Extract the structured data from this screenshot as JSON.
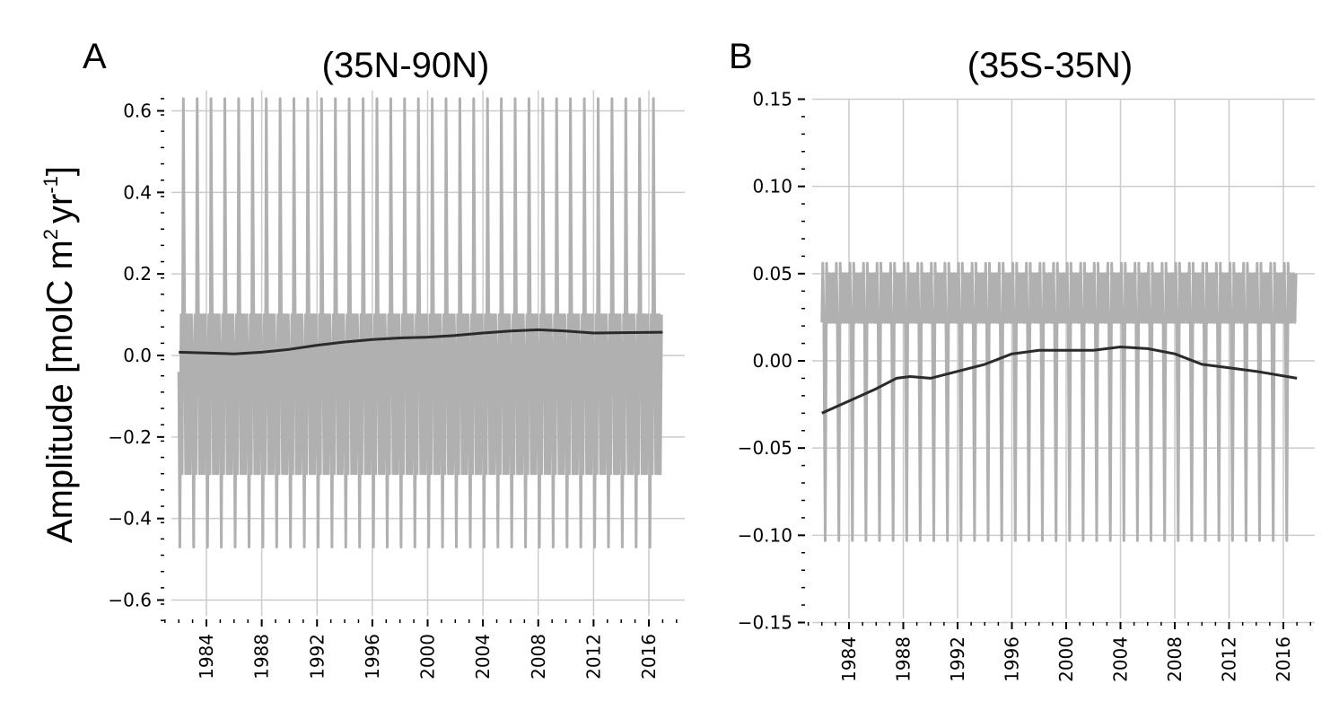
{
  "figure": {
    "ylabel_main": "Amplitude [molC m",
    "ylabel_sup2": "2",
    "ylabel_yr": "yr",
    "ylabel_sup_neg1": "-1",
    "ylabel_close": "]"
  },
  "chart_data": [
    {
      "type": "line",
      "panel_label": "A",
      "title": "(35N-90N)",
      "xlabel": "",
      "ylabel": "Amplitude [molC m2 yr-1]",
      "xlim": [
        1980.7,
        2018.6
      ],
      "ylim": [
        -0.65,
        0.65
      ],
      "x_ticks": [
        1984,
        1988,
        1992,
        1996,
        2000,
        2004,
        2008,
        2012,
        2016
      ],
      "x_tick_labels": [
        "1984",
        "1988",
        "1992",
        "1996",
        "2000",
        "2004",
        "2008",
        "2012",
        "2016"
      ],
      "y_ticks": [
        -0.6,
        -0.4,
        -0.2,
        0.0,
        0.2,
        0.4,
        0.6
      ],
      "y_tick_labels": [
        "−0.6",
        "−0.4",
        "−0.2",
        "0.0",
        "0.2",
        "0.4",
        "0.6"
      ],
      "grid": true,
      "colors": {
        "seasonal": "#b0b0b0",
        "trend": "#2b2b2b"
      },
      "series": [
        {
          "style": "seasonal-cycle",
          "x_start": 1982.0,
          "x_end": 2016.95,
          "period_years": 1,
          "cycle_profile": {
            "phase": [
              0,
              0.08,
              0.17,
              0.25,
              0.33,
              0.42,
              0.5,
              0.58,
              0.67,
              0.75,
              0.83,
              0.92,
              1.0
            ],
            "value": [
              -0.04,
              -0.47,
              0.1,
              -0.29,
              0.63,
              0.1,
              -0.29,
              0.1,
              -0.29,
              0.1,
              -0.29,
              0.1,
              -0.04
            ]
          }
        },
        {
          "style": "trend",
          "x": [
            1982.0,
            1984,
            1986,
            1988,
            1990,
            1992,
            1994,
            1996,
            1998,
            2000,
            2002,
            2004,
            2006,
            2008,
            2010,
            2012,
            2014,
            2017
          ],
          "y": [
            0.008,
            0.006,
            0.004,
            0.008,
            0.015,
            0.025,
            0.033,
            0.039,
            0.043,
            0.045,
            0.049,
            0.055,
            0.06,
            0.063,
            0.06,
            0.055,
            0.056,
            0.057
          ]
        }
      ]
    },
    {
      "type": "line",
      "panel_label": "B",
      "title": "(35S-35N)",
      "xlabel": "",
      "ylabel": "",
      "xlim": [
        1980.7,
        2018.6
      ],
      "ylim": [
        -0.15,
        0.15
      ],
      "x_ticks": [
        1984,
        1988,
        1992,
        1996,
        2000,
        2004,
        2008,
        2012,
        2016
      ],
      "x_tick_labels": [
        "1984",
        "1988",
        "1992",
        "1996",
        "2000",
        "2004",
        "2008",
        "2012",
        "2016"
      ],
      "y_ticks": [
        -0.15,
        -0.1,
        -0.05,
        0.0,
        0.05,
        0.1,
        0.15
      ],
      "y_tick_labels": [
        "−0.15",
        "−0.10",
        "−0.05",
        "0.00",
        "0.05",
        "0.10",
        "0.15"
      ],
      "grid": true,
      "colors": {
        "seasonal": "#b0b0b0",
        "trend": "#2b2b2b"
      },
      "series": [
        {
          "style": "seasonal-cycle",
          "x_start": 1982.0,
          "x_end": 2016.95,
          "period_years": 1,
          "cycle_profile": {
            "phase": [
              0,
              0.07,
              0.15,
              0.25,
              0.35,
              0.45,
              0.55,
              0.65,
              0.75,
              0.85,
              0.93,
              1.0
            ],
            "value": [
              0.022,
              0.056,
              0.02,
              -0.103,
              0.056,
              0.022,
              0.05,
              0.022,
              0.05,
              0.022,
              0.05,
              0.022
            ]
          }
        },
        {
          "style": "trend",
          "x": [
            1982.0,
            1984,
            1986,
            1987.5,
            1988.5,
            1990,
            1992,
            1994,
            1996,
            1998,
            2000,
            2002,
            2004,
            2006,
            2008,
            2010,
            2012,
            2014,
            2017
          ],
          "y": [
            -0.03,
            -0.023,
            -0.016,
            -0.01,
            -0.009,
            -0.01,
            -0.006,
            -0.002,
            0.004,
            0.006,
            0.006,
            0.006,
            0.008,
            0.007,
            0.004,
            -0.002,
            -0.004,
            -0.006,
            -0.01
          ]
        }
      ]
    }
  ]
}
